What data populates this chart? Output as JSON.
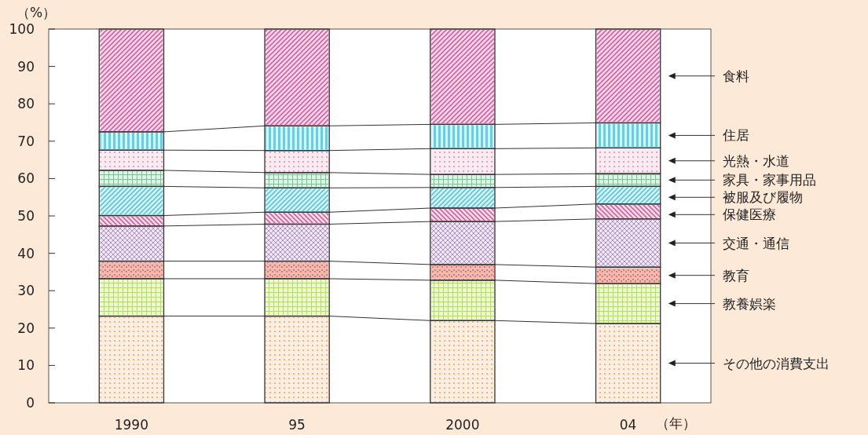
{
  "chart_data": {
    "type": "bar",
    "stacked": true,
    "ylabel": "（%）",
    "xlabel": "（年）",
    "categories": [
      "1990",
      "95",
      "2000",
      "04"
    ],
    "legend": "right",
    "ylim": [
      0,
      100
    ],
    "yticks": [
      0,
      10,
      20,
      30,
      40,
      50,
      60,
      70,
      80,
      90,
      100
    ],
    "grid": false,
    "series": [
      {
        "name": "その他の消費支出",
        "color": "#f7b27a",
        "values": [
          23.2,
          23.2,
          22.0,
          21.2
        ]
      },
      {
        "name": "教養娯楽",
        "color": "#b8d870",
        "values": [
          10.0,
          10.0,
          10.8,
          10.7
        ]
      },
      {
        "name": "教育",
        "color": "#e07868",
        "values": [
          4.7,
          4.7,
          4.2,
          4.4
        ]
      },
      {
        "name": "交通・通信",
        "color": "#b090c0",
        "values": [
          9.4,
          9.9,
          11.5,
          12.9
        ]
      },
      {
        "name": "保健医療",
        "color": "#d6609e",
        "values": [
          2.8,
          3.2,
          3.6,
          4.0
        ]
      },
      {
        "name": "被服及び履物",
        "color": "#5cc4dc",
        "values": [
          7.8,
          6.5,
          5.5,
          4.7
        ]
      },
      {
        "name": "家具・家事用品",
        "color": "#80c098",
        "values": [
          4.3,
          4.1,
          3.5,
          3.4
        ]
      },
      {
        "name": "光熱・水道",
        "color": "#e8a0c0",
        "values": [
          5.4,
          5.9,
          6.9,
          6.9
        ]
      },
      {
        "name": "住居",
        "color": "#6ccde0",
        "values": [
          4.9,
          6.6,
          6.5,
          6.7
        ]
      },
      {
        "name": "食料",
        "color": "#d6609e",
        "values": [
          27.5,
          25.9,
          25.5,
          25.1
        ]
      }
    ]
  }
}
